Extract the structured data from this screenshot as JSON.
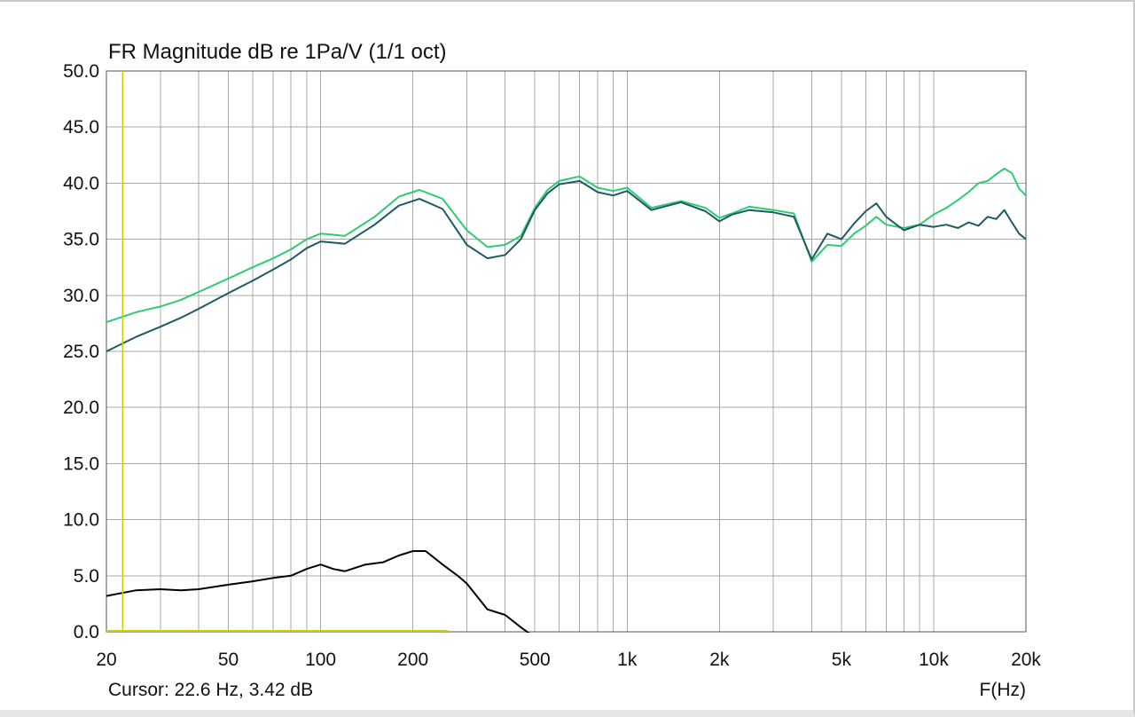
{
  "chart_data": {
    "type": "line",
    "title": "FR Magnitude dB re 1Pa/V (1/1 oct)",
    "xlabel": "F(Hz)",
    "ylabel": "",
    "x_scale": "log",
    "xlim": [
      20,
      20000
    ],
    "ylim": [
      0,
      50
    ],
    "grid": true,
    "legend": "none",
    "x_tick_labels": [
      {
        "value": 20,
        "label": "20"
      },
      {
        "value": 50,
        "label": "50"
      },
      {
        "value": 100,
        "label": "100"
      },
      {
        "value": 200,
        "label": "200"
      },
      {
        "value": 500,
        "label": "500"
      },
      {
        "value": 1000,
        "label": "1k"
      },
      {
        "value": 2000,
        "label": "2k"
      },
      {
        "value": 5000,
        "label": "5k"
      },
      {
        "value": 10000,
        "label": "10k"
      },
      {
        "value": 20000,
        "label": "20k"
      }
    ],
    "y_tick_labels": [
      {
        "value": 0,
        "label": "0.0"
      },
      {
        "value": 5,
        "label": "5.0"
      },
      {
        "value": 10,
        "label": "10.0"
      },
      {
        "value": 15,
        "label": "15.0"
      },
      {
        "value": 20,
        "label": "20.0"
      },
      {
        "value": 25,
        "label": "25.0"
      },
      {
        "value": 30,
        "label": "30.0"
      },
      {
        "value": 35,
        "label": "35.0"
      },
      {
        "value": 40,
        "label": "40.0"
      },
      {
        "value": 45,
        "label": "45.0"
      },
      {
        "value": 50,
        "label": "50.0"
      }
    ],
    "series": [
      {
        "color": "#2ecc71",
        "x": [
          20,
          25,
          30,
          35,
          40,
          50,
          60,
          70,
          80,
          90,
          100,
          120,
          150,
          180,
          210,
          250,
          300,
          350,
          400,
          450,
          500,
          550,
          600,
          700,
          800,
          900,
          1000,
          1200,
          1500,
          1800,
          2000,
          2200,
          2500,
          3000,
          3500,
          4000,
          4500,
          5000,
          5500,
          6000,
          6500,
          7000,
          8000,
          9000,
          10000,
          11000,
          12000,
          13000,
          14000,
          15000,
          16000,
          17000,
          18000,
          19000,
          20000
        ],
        "y": [
          27.6,
          28.5,
          29.0,
          29.6,
          30.3,
          31.5,
          32.5,
          33.3,
          34.1,
          35.0,
          35.5,
          35.3,
          37.0,
          38.8,
          39.4,
          38.6,
          35.8,
          34.3,
          34.5,
          35.3,
          37.8,
          39.4,
          40.2,
          40.6,
          39.6,
          39.3,
          39.6,
          37.8,
          38.4,
          37.8,
          36.9,
          37.3,
          37.9,
          37.6,
          37.3,
          33.0,
          34.5,
          34.4,
          35.5,
          36.2,
          37.0,
          36.3,
          36.0,
          36.3,
          37.2,
          37.8,
          38.5,
          39.2,
          40.0,
          40.2,
          40.8,
          41.3,
          40.9,
          39.5,
          38.9
        ]
      },
      {
        "color": "#1e5a64",
        "x": [
          20,
          25,
          30,
          35,
          40,
          50,
          60,
          70,
          80,
          90,
          100,
          120,
          150,
          180,
          210,
          250,
          300,
          350,
          400,
          450,
          500,
          550,
          600,
          700,
          800,
          900,
          1000,
          1200,
          1500,
          1800,
          2000,
          2200,
          2500,
          3000,
          3500,
          4000,
          4500,
          5000,
          5500,
          6000,
          6500,
          7000,
          8000,
          9000,
          10000,
          11000,
          12000,
          13000,
          14000,
          15000,
          16000,
          17000,
          18000,
          19000,
          20000
        ],
        "y": [
          25.0,
          26.3,
          27.2,
          28.0,
          28.8,
          30.2,
          31.3,
          32.3,
          33.2,
          34.2,
          34.8,
          34.6,
          36.3,
          38.0,
          38.6,
          37.7,
          34.5,
          33.3,
          33.6,
          35.0,
          37.6,
          39.1,
          39.9,
          40.2,
          39.2,
          38.9,
          39.3,
          37.6,
          38.3,
          37.5,
          36.6,
          37.2,
          37.6,
          37.4,
          37.0,
          33.2,
          35.5,
          35.0,
          36.4,
          37.5,
          38.2,
          37.0,
          35.8,
          36.3,
          36.1,
          36.3,
          36.0,
          36.5,
          36.2,
          37.0,
          36.8,
          37.6,
          36.5,
          35.5,
          35.0
        ]
      },
      {
        "color": "#000000",
        "x": [
          20,
          25,
          30,
          35,
          40,
          50,
          60,
          70,
          80,
          90,
          100,
          110,
          120,
          140,
          160,
          180,
          200,
          220,
          250,
          280,
          300,
          350,
          400,
          450,
          500
        ],
        "y": [
          3.2,
          3.7,
          3.8,
          3.7,
          3.8,
          4.2,
          4.5,
          4.8,
          5.0,
          5.6,
          6.0,
          5.6,
          5.4,
          6.0,
          6.2,
          6.8,
          7.2,
          7.2,
          6.0,
          5.0,
          4.3,
          2.0,
          1.5,
          0.4,
          -0.5
        ]
      }
    ]
  },
  "cursor": {
    "readout": "Cursor: 22.6 Hz, 3.42 dB",
    "frequency_hz": 22.6,
    "marker_color": "#cccc00",
    "level_line_x": [
      20,
      260
    ]
  },
  "colors": {
    "grid": "#a8a8a8",
    "plot_border": "#555555",
    "cursor": "#cccc00"
  }
}
